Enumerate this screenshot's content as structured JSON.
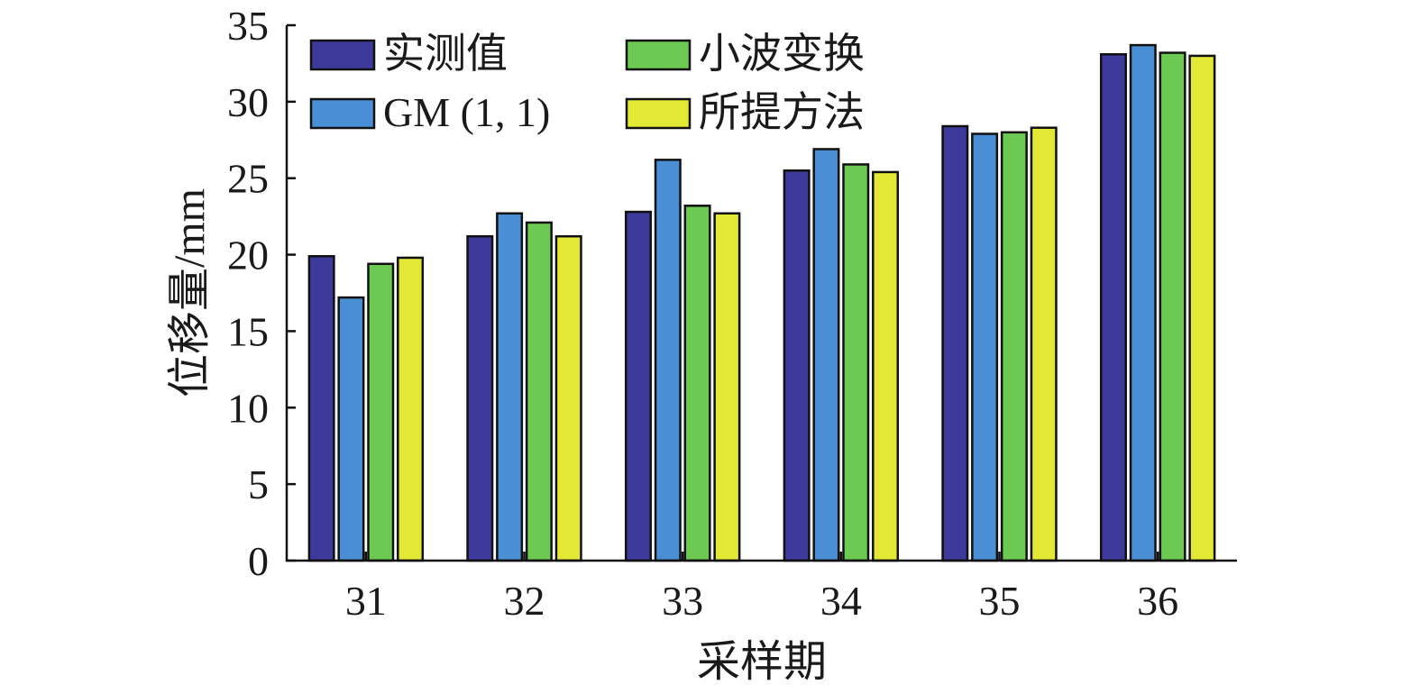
{
  "chart_data": {
    "type": "bar",
    "categories": [
      "31",
      "32",
      "33",
      "34",
      "35",
      "36"
    ],
    "series": [
      {
        "name": "实测值",
        "color": "#3d3a9c",
        "values": [
          19.9,
          21.2,
          22.8,
          25.5,
          28.4,
          33.1
        ]
      },
      {
        "name": "GM (1, 1)",
        "color": "#4a8fd6",
        "values": [
          17.2,
          22.7,
          26.2,
          26.9,
          27.9,
          33.7
        ]
      },
      {
        "name": "小波变换",
        "color": "#6cc952",
        "values": [
          19.4,
          22.1,
          23.2,
          25.9,
          28.0,
          33.2
        ]
      },
      {
        "name": "所提方法",
        "color": "#e2e834",
        "values": [
          19.8,
          21.2,
          22.7,
          25.4,
          28.3,
          33.0
        ]
      }
    ],
    "title": "",
    "xlabel": "采样期",
    "ylabel": "位移量/mm",
    "ylim": [
      0,
      35
    ],
    "yticks": [
      "0",
      "5",
      "10",
      "15",
      "20",
      "25",
      "30",
      "35"
    ],
    "grid": false,
    "legend_position": "top-left",
    "legend_columns": 2
  }
}
